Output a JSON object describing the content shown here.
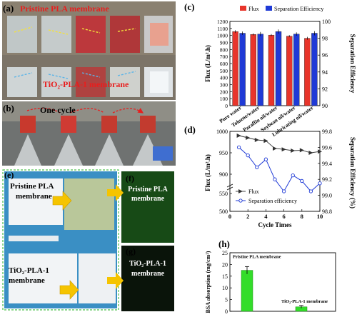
{
  "panels": {
    "a": {
      "letter": "(a)",
      "top_label": "Pristine PLA membrane",
      "bottom_label": "TiO₂-PLA-1 membrane"
    },
    "b": {
      "letter": "(b)",
      "caption": "One cycle"
    },
    "e": {
      "letter": "(e)",
      "top_label_line1": "Pristine PLA",
      "top_label_line2": "membrane",
      "bottom_label_line1": "TiO₂-PLA-1",
      "bottom_label_line2": "membrane"
    },
    "f": {
      "letter": "(f)",
      "label_line1": "Pristine PLA",
      "label_line2": "membrane"
    },
    "g": {
      "letter": "(g)",
      "label_line1": "TiO₂-PLA-1",
      "label_line2": "membrane"
    }
  },
  "colors": {
    "flux_red": "#e8352b",
    "separation_blue": "#1f3ad6",
    "bsa_green": "#33dd2a",
    "dashed_border": "#4bbf4b",
    "arrow_yellow": "#f5c400",
    "red_annotation": "#e81e1e",
    "fluorescence_bg": "#0c1a0c"
  },
  "chart_data": [
    {
      "id": "c",
      "panel": "(c)",
      "type": "bar",
      "categories": [
        "Pure water",
        "Toluene/water",
        "Paraffin oil/water",
        "Soybean oil/water",
        "Lubricating oil/water"
      ],
      "series": [
        {
          "name": "Flux",
          "axis": "left",
          "values": [
            1055,
            1015,
            1005,
            990,
            960
          ],
          "errors": [
            20,
            15,
            15,
            15,
            20
          ]
        },
        {
          "name": "Separation Efficiency",
          "axis": "right",
          "values": [
            98.6,
            98.5,
            98.8,
            98.5,
            98.6
          ],
          "errors": [
            0.2,
            0.25,
            0.25,
            0.2,
            0.25
          ]
        }
      ],
      "ylabel": "Flux (L/m².h)",
      "ylabel_right": "Separation Efficiency",
      "ylim": [
        0,
        1200
      ],
      "yticks": [
        0,
        100,
        200,
        300,
        400,
        500,
        600,
        700,
        800,
        900,
        1000,
        1100,
        1200
      ],
      "ylim_right": [
        90,
        100
      ],
      "yticks_right": [
        90,
        92,
        94,
        96,
        98,
        100
      ],
      "legend": "top"
    },
    {
      "id": "d",
      "panel": "(d)",
      "type": "line",
      "x": [
        1,
        2,
        3,
        4,
        5,
        6,
        7,
        8,
        9,
        10
      ],
      "series": [
        {
          "name": "Flux",
          "axis": "left",
          "values": [
            990,
            985,
            980,
            978,
            960,
            958,
            955,
            956,
            950,
            953
          ]
        },
        {
          "name": "Separation efficiency",
          "axis": "right",
          "values": [
            99.6,
            99.5,
            99.35,
            99.45,
            99.2,
            99.05,
            99.25,
            99.18,
            99.05,
            99.15
          ]
        }
      ],
      "xlabel": "Cycle Times",
      "ylabel": "Flux (L/m².h)",
      "ylabel_right": "Separation Efficiency (%)",
      "xlim": [
        0,
        10
      ],
      "xticks": [
        0,
        2,
        4,
        6,
        8,
        10
      ],
      "yticks": [
        500,
        550,
        900,
        950,
        1000
      ],
      "ylim_right": [
        98.8,
        99.8
      ],
      "yticks_right": [
        98.8,
        99.0,
        99.2,
        99.4,
        99.6,
        99.8
      ],
      "legend": "bottom-left"
    },
    {
      "id": "h",
      "panel": "(h)",
      "type": "bar",
      "categories": [
        "Pristine PLA membrane",
        "TiO₂-PLA-1 membrane"
      ],
      "values": [
        17.5,
        1.9
      ],
      "errors": [
        1.6,
        0.6
      ],
      "ylabel": "BSA absorption (mg/cm²)",
      "ylim": [
        0,
        25
      ],
      "yticks": [
        0,
        5,
        10,
        15,
        20,
        25
      ]
    }
  ]
}
